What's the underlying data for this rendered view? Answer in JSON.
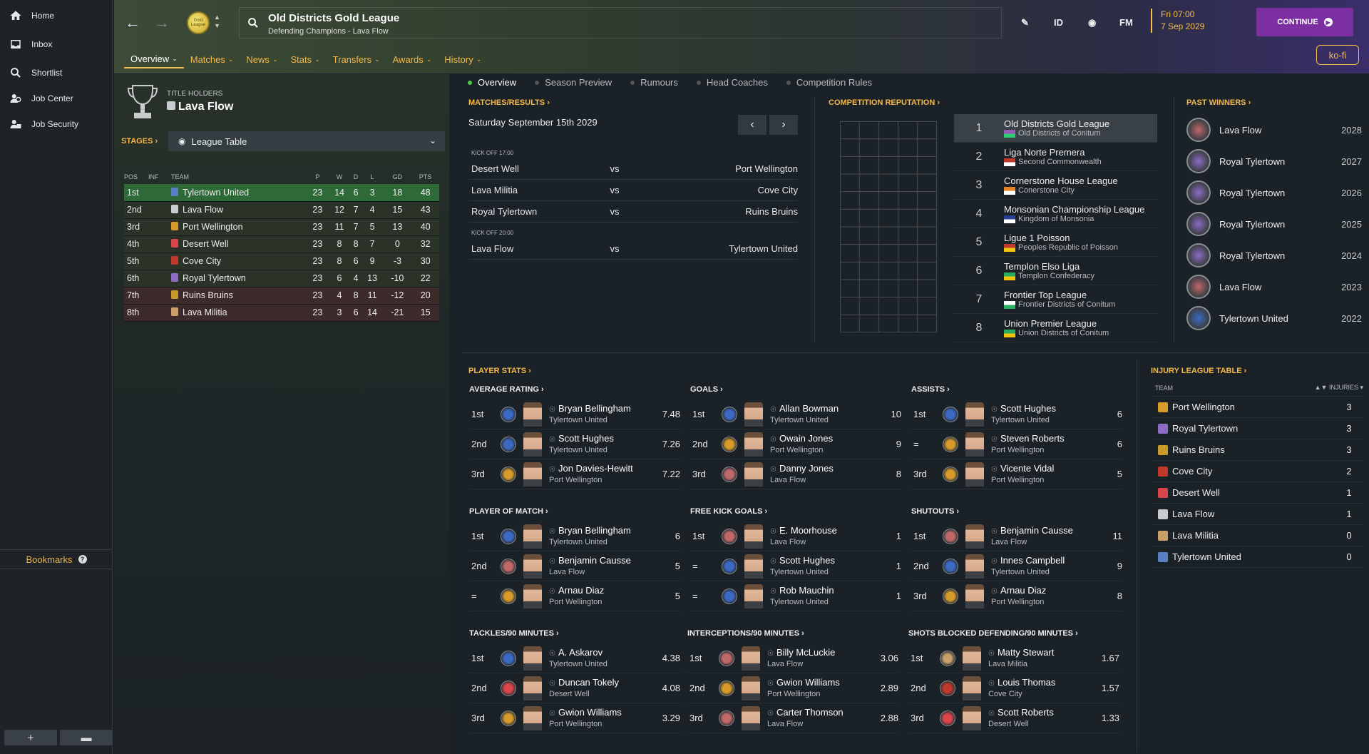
{
  "sidebar": {
    "items": [
      {
        "label": "Home",
        "icon": "home-icon"
      },
      {
        "label": "Inbox",
        "icon": "inbox-icon"
      },
      {
        "label": "Shortlist",
        "icon": "search-icon"
      },
      {
        "label": "Job Center",
        "icon": "job-center-icon"
      },
      {
        "label": "Job Security",
        "icon": "job-security-icon"
      }
    ],
    "bookmarks_label": "Bookmarks",
    "bookmarks_help": "?",
    "add_label": "+",
    "folder_label": "▬"
  },
  "header": {
    "league_name": "Old Districts Gold League",
    "subtitle": "Defending Champions - Lava Flow",
    "logo_text": "Gold League",
    "id_label": "ID",
    "fm_label": "FM",
    "date_line1": "Fri 07:00",
    "date_line2": "7 Sep 2029",
    "continue_label": "CONTINUE",
    "kofi_label": "ko-fi",
    "tabs": [
      "Overview",
      "Matches",
      "News",
      "Stats",
      "Transfers",
      "Awards",
      "History"
    ]
  },
  "holders": {
    "label": "TITLE HOLDERS",
    "team": "Lava Flow"
  },
  "stages": {
    "label": "STAGES",
    "selected": "League Table"
  },
  "league_table": {
    "columns": [
      "POS",
      "INF",
      "TEAM",
      "P",
      "W",
      "D",
      "L",
      "GD",
      "PTS"
    ],
    "rows": [
      {
        "pos": "1st",
        "team": "Tylertown United",
        "p": "23",
        "w": "14",
        "d": "6",
        "l": "3",
        "gd": "18",
        "pts": "48",
        "bg": "#2e6a37",
        "crest": "#5b7fc4"
      },
      {
        "pos": "2nd",
        "team": "Lava Flow",
        "p": "23",
        "w": "12",
        "d": "7",
        "l": "4",
        "gd": "15",
        "pts": "43",
        "bg": "#2b3329",
        "crest": "#c8ccce"
      },
      {
        "pos": "3rd",
        "team": "Port Wellington",
        "p": "23",
        "w": "11",
        "d": "7",
        "l": "5",
        "gd": "13",
        "pts": "40",
        "bg": "#2b3329",
        "crest": "#d79b2a"
      },
      {
        "pos": "4th",
        "team": "Desert Well",
        "p": "23",
        "w": "8",
        "d": "8",
        "l": "7",
        "gd": "0",
        "pts": "32",
        "bg": "#2b3329",
        "crest": "#d9454a"
      },
      {
        "pos": "5th",
        "team": "Cove City",
        "p": "23",
        "w": "8",
        "d": "6",
        "l": "9",
        "gd": "-3",
        "pts": "30",
        "bg": "#2b3329",
        "crest": "#c0392b"
      },
      {
        "pos": "6th",
        "team": "Royal Tylertown",
        "p": "23",
        "w": "6",
        "d": "4",
        "l": "13",
        "gd": "-10",
        "pts": "22",
        "bg": "#2b3329",
        "crest": "#8c6cc4"
      },
      {
        "pos": "7th",
        "team": "Ruins Bruins",
        "p": "23",
        "w": "4",
        "d": "8",
        "l": "11",
        "gd": "-12",
        "pts": "20",
        "bg": "#3d2a2a",
        "crest": "#c89a2a"
      },
      {
        "pos": "8th",
        "team": "Lava Militia",
        "p": "23",
        "w": "3",
        "d": "6",
        "l": "14",
        "gd": "-21",
        "pts": "15",
        "bg": "#3d2a2a",
        "crest": "#c8a068"
      }
    ]
  },
  "subtabs": [
    "Overview",
    "Season Preview",
    "Rumours",
    "Head Coaches",
    "Competition Rules"
  ],
  "matches": {
    "heading": "MATCHES/RESULTS",
    "date": "Saturday September 15th 2029",
    "groups": [
      {
        "kickoff": "KICK OFF 17:00",
        "fixtures": [
          {
            "home": "Desert Well",
            "vs": "vs",
            "away": "Port Wellington"
          },
          {
            "home": "Lava Militia",
            "vs": "vs",
            "away": "Cove City"
          },
          {
            "home": "Royal Tylertown",
            "vs": "vs",
            "away": "Ruins Bruins"
          }
        ]
      },
      {
        "kickoff": "KICK OFF 20:00",
        "fixtures": [
          {
            "home": "Lava Flow",
            "vs": "vs",
            "away": "Tylertown United"
          }
        ]
      }
    ]
  },
  "reputation": {
    "heading": "COMPETITION REPUTATION",
    "items": [
      {
        "rank": "1",
        "name": "Old Districts Gold League",
        "sub": "Old Districts of Conitum",
        "flag": [
          "#9b59b6",
          "#2ecc71"
        ]
      },
      {
        "rank": "2",
        "name": "Liga Norte Premera",
        "sub": "Second Commonwealth",
        "flag": [
          "#c0392b",
          "#ffffff"
        ]
      },
      {
        "rank": "3",
        "name": "Cornerstone House League",
        "sub": "Conerstone City",
        "flag": [
          "#e67e22",
          "#ffffff"
        ]
      },
      {
        "rank": "4",
        "name": "Monsonian Championship League",
        "sub": "Kingdom of Monsonia",
        "flag": [
          "#2c3e90",
          "#ffffff"
        ]
      },
      {
        "rank": "5",
        "name": "Ligue 1 Poisson",
        "sub": "Peoples Republic of Poisson",
        "flag": [
          "#c0392b",
          "#f1c40f"
        ]
      },
      {
        "rank": "6",
        "name": "Templon Elso Liga",
        "sub": "Templon Confederacy",
        "flag": [
          "#27ae60",
          "#f1c40f"
        ]
      },
      {
        "rank": "7",
        "name": "Frontier Top League",
        "sub": "Frontier Districts of Conitum",
        "flag": [
          "#ffffff",
          "#27ae60"
        ]
      },
      {
        "rank": "8",
        "name": "Union Premier League",
        "sub": "Union Districts of Conitum",
        "flag": [
          "#27ae60",
          "#f1c40f"
        ]
      }
    ]
  },
  "past_winners": {
    "heading": "PAST WINNERS",
    "items": [
      {
        "team": "Lava Flow",
        "year": "2028",
        "color": "#c0686a"
      },
      {
        "team": "Royal Tylertown",
        "year": "2027",
        "color": "#8c6cc4"
      },
      {
        "team": "Royal Tylertown",
        "year": "2026",
        "color": "#8c6cc4"
      },
      {
        "team": "Royal Tylertown",
        "year": "2025",
        "color": "#8c6cc4"
      },
      {
        "team": "Royal Tylertown",
        "year": "2024",
        "color": "#8c6cc4"
      },
      {
        "team": "Lava Flow",
        "year": "2023",
        "color": "#c0686a"
      },
      {
        "team": "Tylertown United",
        "year": "2022",
        "color": "#3a6ac4"
      }
    ]
  },
  "player_stats": {
    "heading": "PLAYER STATS",
    "boxes": [
      {
        "title": "AVERAGE RATING",
        "rows": [
          {
            "rk": "1st",
            "name": "Bryan Bellingham",
            "club": "Tylertown United",
            "val": "7.48",
            "c": "#3a6ac4"
          },
          {
            "rk": "2nd",
            "name": "Scott Hughes",
            "club": "Tylertown United",
            "val": "7.26",
            "c": "#3a6ac4"
          },
          {
            "rk": "3rd",
            "name": "Jon Davies-Hewitt",
            "club": "Port Wellington",
            "val": "7.22",
            "c": "#d79b2a"
          }
        ]
      },
      {
        "title": "GOALS",
        "rows": [
          {
            "rk": "1st",
            "name": "Allan Bowman",
            "club": "Tylertown United",
            "val": "10",
            "c": "#3a6ac4"
          },
          {
            "rk": "2nd",
            "name": "Owain Jones",
            "club": "Port Wellington",
            "val": "9",
            "c": "#d79b2a"
          },
          {
            "rk": "3rd",
            "name": "Danny Jones",
            "club": "Lava Flow",
            "val": "8",
            "c": "#c0686a"
          }
        ]
      },
      {
        "title": "ASSISTS",
        "rows": [
          {
            "rk": "1st",
            "name": "Scott Hughes",
            "club": "Tylertown United",
            "val": "6",
            "c": "#3a6ac4"
          },
          {
            "rk": "=",
            "name": "Steven Roberts",
            "club": "Port Wellington",
            "val": "6",
            "c": "#d79b2a"
          },
          {
            "rk": "3rd",
            "name": "Vicente Vidal",
            "club": "Port Wellington",
            "val": "5",
            "c": "#d79b2a"
          }
        ]
      },
      {
        "title": "PLAYER OF MATCH",
        "rows": [
          {
            "rk": "1st",
            "name": "Bryan Bellingham",
            "club": "Tylertown United",
            "val": "6",
            "c": "#3a6ac4"
          },
          {
            "rk": "2nd",
            "name": "Benjamin Causse",
            "club": "Lava Flow",
            "val": "5",
            "c": "#c0686a"
          },
          {
            "rk": "=",
            "name": "Arnau Diaz",
            "club": "Port Wellington",
            "val": "5",
            "c": "#d79b2a"
          }
        ]
      },
      {
        "title": "FREE KICK GOALS",
        "rows": [
          {
            "rk": "1st",
            "name": "E. Moorhouse",
            "club": "Lava Flow",
            "val": "1",
            "c": "#c0686a"
          },
          {
            "rk": "=",
            "name": "Scott Hughes",
            "club": "Tylertown United",
            "val": "1",
            "c": "#3a6ac4"
          },
          {
            "rk": "=",
            "name": "Rob Mauchin",
            "club": "Tylertown United",
            "val": "1",
            "c": "#3a6ac4"
          }
        ]
      },
      {
        "title": "SHUTOUTS",
        "rows": [
          {
            "rk": "1st",
            "name": "Benjamin Causse",
            "club": "Lava Flow",
            "val": "11",
            "c": "#c0686a"
          },
          {
            "rk": "2nd",
            "name": "Innes Campbell",
            "club": "Tylertown United",
            "val": "9",
            "c": "#3a6ac4"
          },
          {
            "rk": "3rd",
            "name": "Arnau Diaz",
            "club": "Port Wellington",
            "val": "8",
            "c": "#d79b2a"
          }
        ]
      },
      {
        "title": "TACKLES/90 MINUTES",
        "rows": [
          {
            "rk": "1st",
            "name": "A. Askarov",
            "club": "Tylertown United",
            "val": "4.38",
            "c": "#3a6ac4"
          },
          {
            "rk": "2nd",
            "name": "Duncan Tokely",
            "club": "Desert Well",
            "val": "4.08",
            "c": "#d9454a"
          },
          {
            "rk": "3rd",
            "name": "Gwion Williams",
            "club": "Port Wellington",
            "val": "3.29",
            "c": "#d79b2a"
          }
        ]
      },
      {
        "title": "INTERCEPTIONS/90 MINUTES",
        "rows": [
          {
            "rk": "1st",
            "name": "Billy McLuckie",
            "club": "Lava Flow",
            "val": "3.06",
            "c": "#c0686a"
          },
          {
            "rk": "2nd",
            "name": "Gwion Williams",
            "club": "Port Wellington",
            "val": "2.89",
            "c": "#d79b2a"
          },
          {
            "rk": "3rd",
            "name": "Carter Thomson",
            "club": "Lava Flow",
            "val": "2.88",
            "c": "#c0686a"
          }
        ]
      },
      {
        "title": "SHOTS BLOCKED DEFENDING/90 MINUTES",
        "rows": [
          {
            "rk": "1st",
            "name": "Matty Stewart",
            "club": "Lava Militia",
            "val": "1.67",
            "c": "#c8a068"
          },
          {
            "rk": "2nd",
            "name": "Louis Thomas",
            "club": "Cove City",
            "val": "1.57",
            "c": "#c0392b"
          },
          {
            "rk": "3rd",
            "name": "Scott Roberts",
            "club": "Desert Well",
            "val": "1.33",
            "c": "#d9454a"
          }
        ]
      }
    ]
  },
  "injury": {
    "heading": "INJURY LEAGUE TABLE",
    "col_team": "TEAM",
    "col_injuries": "INJURIES",
    "rows": [
      {
        "team": "Port Wellington",
        "val": "3",
        "c": "#d79b2a"
      },
      {
        "team": "Royal Tylertown",
        "val": "3",
        "c": "#8c6cc4"
      },
      {
        "team": "Ruins Bruins",
        "val": "3",
        "c": "#c89a2a"
      },
      {
        "team": "Cove City",
        "val": "2",
        "c": "#c0392b"
      },
      {
        "team": "Desert Well",
        "val": "1",
        "c": "#d9454a"
      },
      {
        "team": "Lava Flow",
        "val": "1",
        "c": "#c8ccce"
      },
      {
        "team": "Lava Militia",
        "val": "0",
        "c": "#c8a068"
      },
      {
        "team": "Tylertown United",
        "val": "0",
        "c": "#5b7fc4"
      }
    ]
  }
}
